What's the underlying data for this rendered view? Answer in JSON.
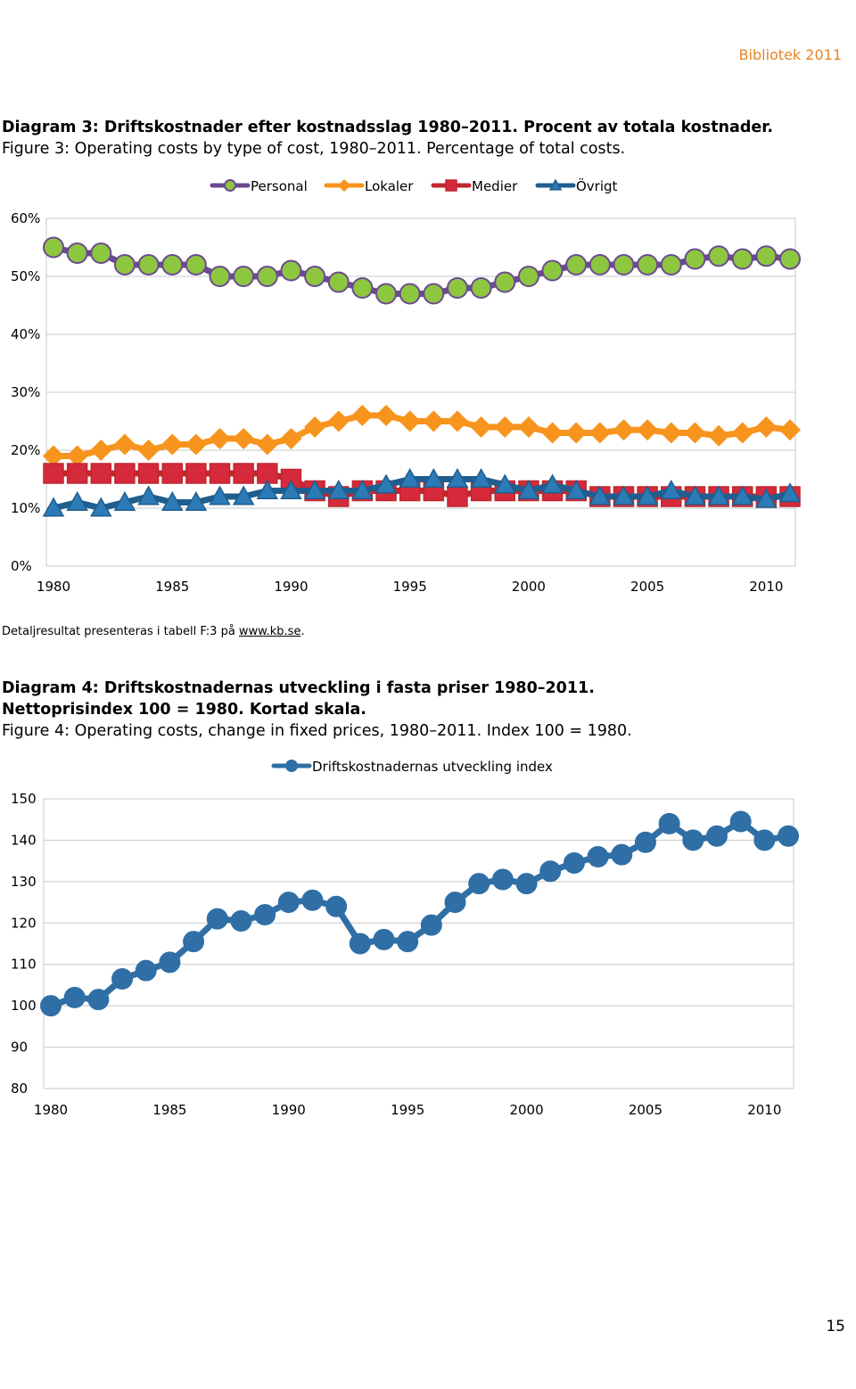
{
  "header": {
    "text": "Bibliotek 2011"
  },
  "detail": {
    "prefix": "Detaljresultat presenteras i tabell F:3 på ",
    "link": "www.kb.se",
    "suffix": "."
  },
  "page_number": "15",
  "chart_data": [
    {
      "type": "line",
      "title": "Diagram 3: Driftskostnader efter kostnadsslag 1980–2011. Procent av totala kostnader.",
      "subtitle": "Figure 3: Operating costs by type of cost, 1980–2011. Percentage of total costs.",
      "x": [
        1980,
        1981,
        1982,
        1983,
        1984,
        1985,
        1986,
        1987,
        1988,
        1989,
        1990,
        1991,
        1992,
        1993,
        1994,
        1995,
        1996,
        1997,
        1998,
        1999,
        2000,
        2001,
        2002,
        2003,
        2004,
        2005,
        2006,
        2007,
        2008,
        2009,
        2010,
        2011
      ],
      "x_ticks": [
        "1980",
        "1985",
        "1990",
        "1995",
        "2000",
        "2005",
        "2010"
      ],
      "y_ticks": [
        "0%",
        "10%",
        "20%",
        "30%",
        "40%",
        "50%",
        "60%"
      ],
      "ylim": [
        0,
        60
      ],
      "legend_position": "top",
      "series": [
        {
          "name": "Personal",
          "color": "#8dc63f",
          "line_color": "#6b4a91",
          "marker": "circle",
          "values": [
            55,
            54,
            54,
            52,
            52,
            52,
            52,
            50,
            50,
            50,
            51,
            50,
            49,
            48,
            47,
            47,
            47,
            48,
            48,
            49,
            50,
            51,
            52,
            52,
            52,
            52,
            52,
            53,
            53.5,
            53,
            53.5,
            53
          ]
        },
        {
          "name": "Lokaler",
          "color": "#f7941d",
          "line_color": "#f7941d",
          "marker": "diamond",
          "values": [
            19,
            19,
            20,
            21,
            20,
            21,
            21,
            22,
            22,
            21,
            22,
            24,
            25,
            26,
            26,
            25,
            25,
            25,
            24,
            24,
            24,
            23,
            23,
            23,
            23.5,
            23.5,
            23,
            23,
            22.5,
            23,
            24,
            23.5
          ]
        },
        {
          "name": "Medier",
          "color": "#d42a3c",
          "line_color": "#c1272d",
          "marker": "square",
          "values": [
            16,
            16,
            16,
            16,
            16,
            16,
            16,
            16,
            16,
            16,
            15,
            13,
            12,
            13,
            13,
            13,
            13,
            12,
            13,
            13,
            13,
            13,
            13,
            12,
            12,
            12,
            12,
            12,
            12,
            12,
            12,
            12
          ]
        },
        {
          "name": "Övrigt",
          "color": "#2c7bb6",
          "line_color": "#1f5e8e",
          "marker": "triangle",
          "values": [
            10,
            11,
            10,
            11,
            12,
            11,
            11,
            12,
            12,
            13,
            13,
            13,
            13,
            13,
            14,
            15,
            15,
            15,
            15,
            14,
            13,
            14,
            13,
            12,
            12,
            12,
            13,
            12,
            12,
            12,
            11.5,
            12.5
          ]
        }
      ]
    },
    {
      "type": "line",
      "title": "Diagram 4: Driftskostnadernas utveckling i fasta priser 1980–2011.",
      "title_line2": "Nettoprisindex 100 = 1980. Kortad skala.",
      "subtitle": "Figure 4: Operating costs, change in fixed prices, 1980–2011. Index 100 = 1980.",
      "x": [
        1980,
        1981,
        1982,
        1983,
        1984,
        1985,
        1986,
        1987,
        1988,
        1989,
        1990,
        1991,
        1992,
        1993,
        1994,
        1995,
        1996,
        1997,
        1998,
        1999,
        2000,
        2001,
        2002,
        2003,
        2004,
        2005,
        2006,
        2007,
        2008,
        2009,
        2010,
        2011
      ],
      "x_ticks": [
        "1980",
        "1985",
        "1990",
        "1995",
        "2000",
        "2005",
        "2010"
      ],
      "y_ticks": [
        "80",
        "90",
        "100",
        "110",
        "120",
        "130",
        "140",
        "150"
      ],
      "ylim": [
        80,
        150
      ],
      "legend_position": "top",
      "series": [
        {
          "name": "Driftskostnadernas utveckling index",
          "color": "#2f6fa5",
          "line_color": "#2f6fa5",
          "marker": "circle",
          "values": [
            100,
            102,
            101.5,
            106.5,
            108.5,
            110.5,
            115.5,
            121,
            120.5,
            122,
            125,
            125.5,
            124,
            115,
            116,
            115.5,
            119.5,
            125,
            129.5,
            130.5,
            129.5,
            132.5,
            134.5,
            136,
            136.5,
            139.5,
            144,
            140,
            141,
            144.5,
            140,
            141
          ]
        }
      ]
    }
  ]
}
